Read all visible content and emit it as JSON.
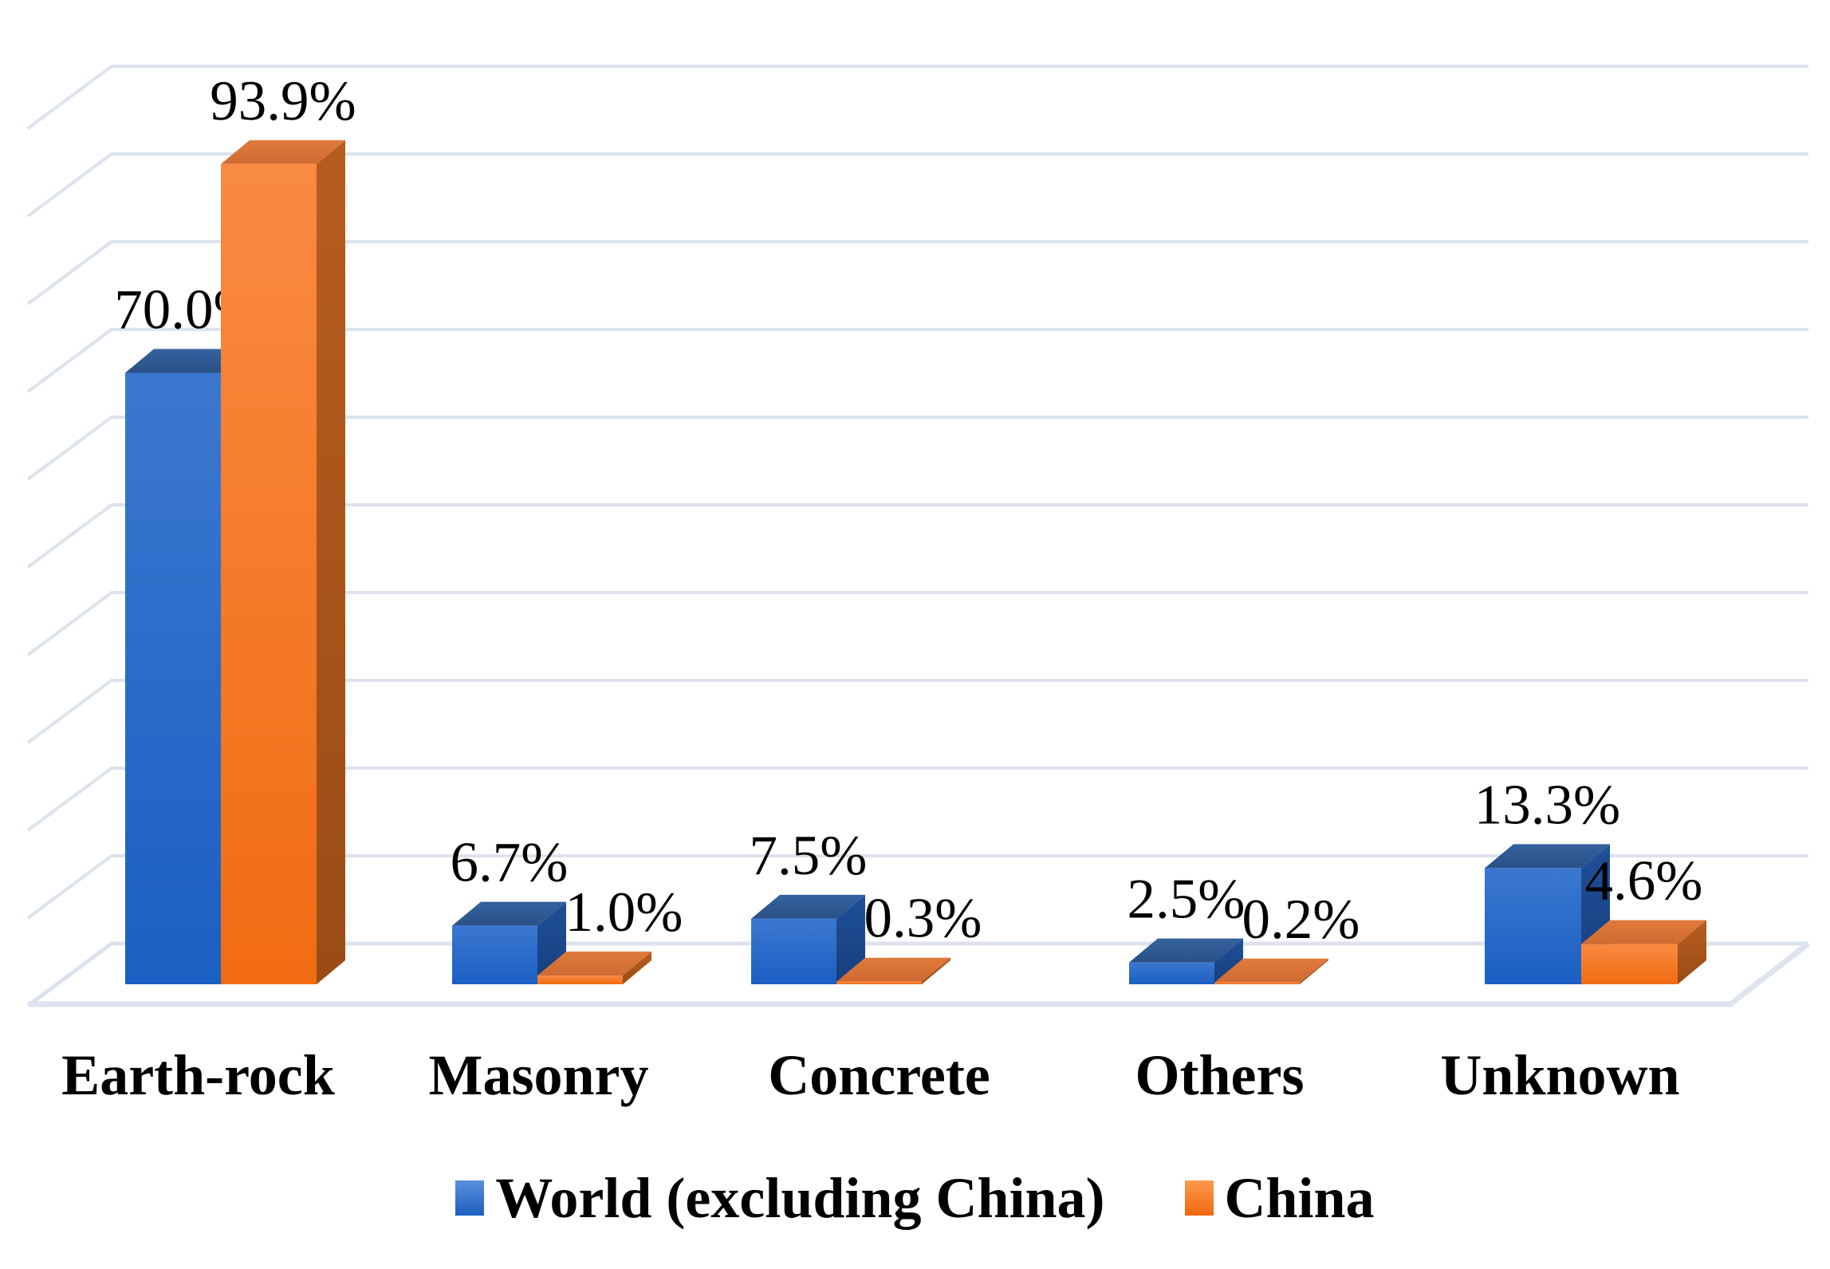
{
  "chart_data": {
    "type": "bar",
    "style": "3d-clustered-column",
    "title": "",
    "xlabel": "",
    "ylabel": "",
    "categories": [
      "Earth-rock",
      "Masonry",
      "Concrete",
      "Others",
      "Unknown"
    ],
    "series": [
      {
        "name": "World (excluding China)",
        "color": "#1e63c4",
        "values": [
          70.0,
          6.7,
          7.5,
          2.5,
          13.3
        ],
        "labels": [
          "70.0%",
          "6.7%",
          "7.5%",
          "2.5%",
          "13.3%"
        ]
      },
      {
        "name": "China",
        "color": "#f3751f",
        "values": [
          93.9,
          1.0,
          0.3,
          0.2,
          4.6
        ],
        "labels": [
          "93.9%",
          "1.0%",
          "0.3%",
          "0.2%",
          "4.6%"
        ]
      }
    ],
    "ylim": [
      0,
      100
    ],
    "gridline_step_pct": 10,
    "grid": "on",
    "gridline_color": "#dce3ee",
    "legend_position": "bottom",
    "background_color": "#ffffff",
    "value_unit": "%"
  }
}
